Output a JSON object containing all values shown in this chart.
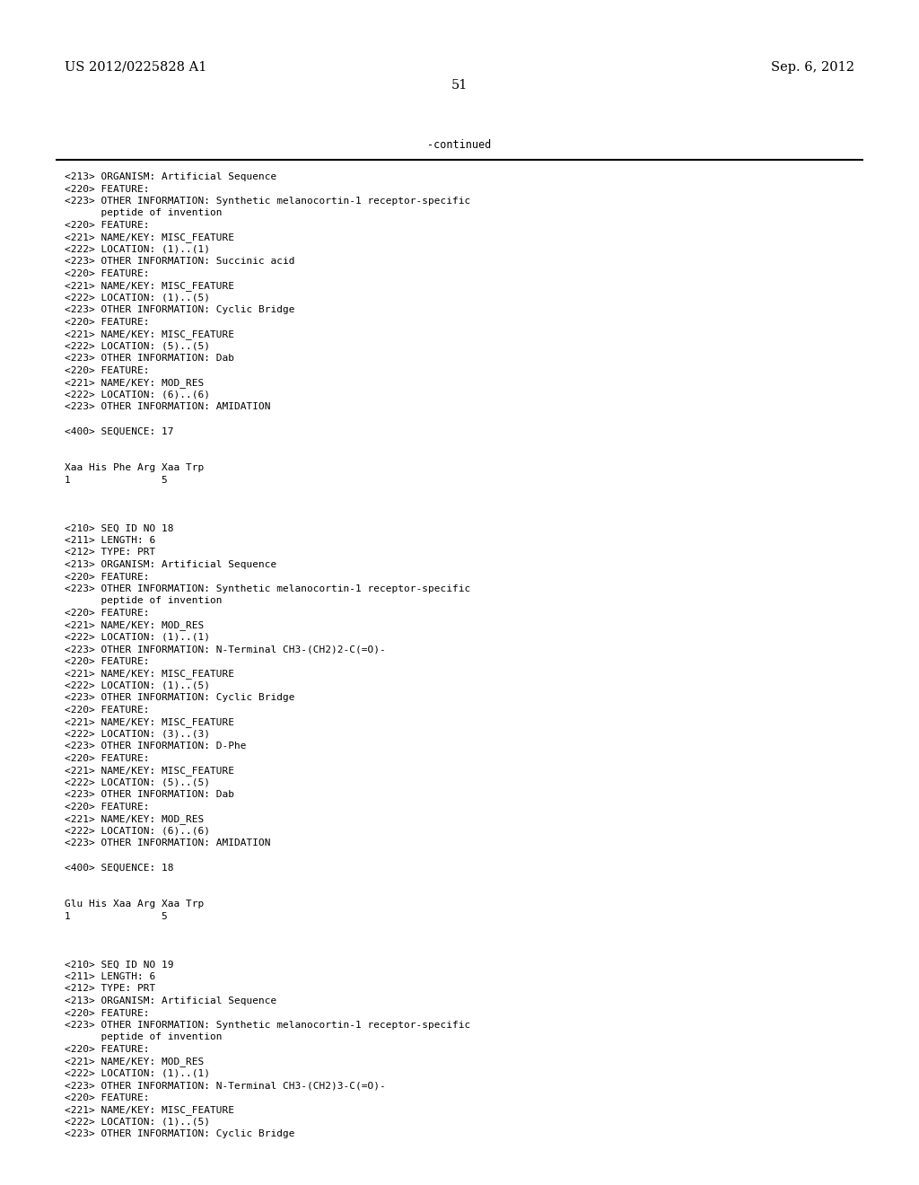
{
  "header_left": "US 2012/0225828 A1",
  "header_right": "Sep. 6, 2012",
  "page_number": "51",
  "continued_text": "-continued",
  "background_color": "#ffffff",
  "text_color": "#000000",
  "font_size_header": 10.5,
  "font_size_body": 8.0,
  "lines": [
    "<213> ORGANISM: Artificial Sequence",
    "<220> FEATURE:",
    "<223> OTHER INFORMATION: Synthetic melanocortin-1 receptor-specific",
    "      peptide of invention",
    "<220> FEATURE:",
    "<221> NAME/KEY: MISC_FEATURE",
    "<222> LOCATION: (1)..(1)",
    "<223> OTHER INFORMATION: Succinic acid",
    "<220> FEATURE:",
    "<221> NAME/KEY: MISC_FEATURE",
    "<222> LOCATION: (1)..(5)",
    "<223> OTHER INFORMATION: Cyclic Bridge",
    "<220> FEATURE:",
    "<221> NAME/KEY: MISC_FEATURE",
    "<222> LOCATION: (5)..(5)",
    "<223> OTHER INFORMATION: Dab",
    "<220> FEATURE:",
    "<221> NAME/KEY: MOD_RES",
    "<222> LOCATION: (6)..(6)",
    "<223> OTHER INFORMATION: AMIDATION",
    "",
    "<400> SEQUENCE: 17",
    "",
    "",
    "Xaa His Phe Arg Xaa Trp",
    "1               5",
    "",
    "",
    "",
    "<210> SEQ ID NO 18",
    "<211> LENGTH: 6",
    "<212> TYPE: PRT",
    "<213> ORGANISM: Artificial Sequence",
    "<220> FEATURE:",
    "<223> OTHER INFORMATION: Synthetic melanocortin-1 receptor-specific",
    "      peptide of invention",
    "<220> FEATURE:",
    "<221> NAME/KEY: MOD_RES",
    "<222> LOCATION: (1)..(1)",
    "<223> OTHER INFORMATION: N-Terminal CH3-(CH2)2-C(=O)-",
    "<220> FEATURE:",
    "<221> NAME/KEY: MISC_FEATURE",
    "<222> LOCATION: (1)..(5)",
    "<223> OTHER INFORMATION: Cyclic Bridge",
    "<220> FEATURE:",
    "<221> NAME/KEY: MISC_FEATURE",
    "<222> LOCATION: (3)..(3)",
    "<223> OTHER INFORMATION: D-Phe",
    "<220> FEATURE:",
    "<221> NAME/KEY: MISC_FEATURE",
    "<222> LOCATION: (5)..(5)",
    "<223> OTHER INFORMATION: Dab",
    "<220> FEATURE:",
    "<221> NAME/KEY: MOD_RES",
    "<222> LOCATION: (6)..(6)",
    "<223> OTHER INFORMATION: AMIDATION",
    "",
    "<400> SEQUENCE: 18",
    "",
    "",
    "Glu His Xaa Arg Xaa Trp",
    "1               5",
    "",
    "",
    "",
    "<210> SEQ ID NO 19",
    "<211> LENGTH: 6",
    "<212> TYPE: PRT",
    "<213> ORGANISM: Artificial Sequence",
    "<220> FEATURE:",
    "<223> OTHER INFORMATION: Synthetic melanocortin-1 receptor-specific",
    "      peptide of invention",
    "<220> FEATURE:",
    "<221> NAME/KEY: MOD_RES",
    "<222> LOCATION: (1)..(1)",
    "<223> OTHER INFORMATION: N-Terminal CH3-(CH2)3-C(=O)-",
    "<220> FEATURE:",
    "<221> NAME/KEY: MISC_FEATURE",
    "<222> LOCATION: (1)..(5)",
    "<223> OTHER INFORMATION: Cyclic Bridge"
  ]
}
